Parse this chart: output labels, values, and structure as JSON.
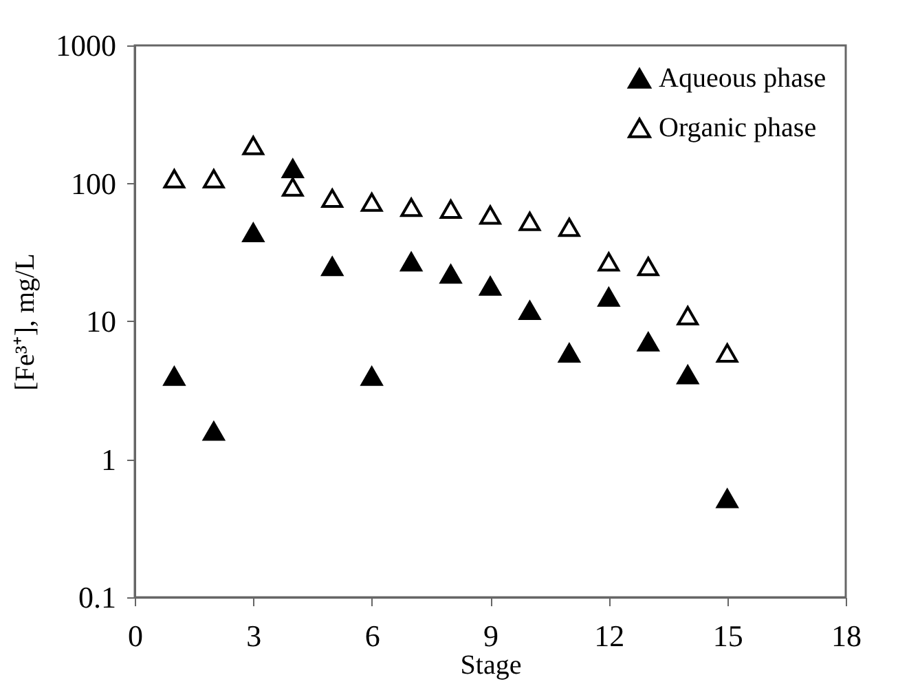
{
  "chart_data": {
    "type": "scatter",
    "xlabel": "Stage",
    "ylabel": "[Fe³⁺], mg/L",
    "log": "y",
    "marker": "triangle",
    "legend": "top right",
    "grid": false,
    "x": [
      1,
      2,
      3,
      4,
      5,
      6,
      7,
      8,
      9,
      10,
      11,
      12,
      13,
      14,
      15
    ],
    "xlim": [
      0,
      18
    ],
    "xticks": [
      0,
      3,
      6,
      9,
      12,
      15,
      18
    ],
    "ylim": [
      0.1,
      1000
    ],
    "yticks": [
      0.1,
      1,
      10,
      100,
      1000
    ],
    "series": [
      {
        "name": "Aqueous phase",
        "color": "#000000",
        "values": [
          4.0,
          1.6,
          44,
          128,
          25,
          4.0,
          27,
          22,
          18,
          12,
          5.9,
          15,
          7.1,
          4.1,
          0.52
        ]
      },
      {
        "name": "Organic phase",
        "color": "#ffffff",
        "values": [
          108,
          108,
          188,
          94,
          78,
          73,
          67,
          65,
          59,
          53,
          48,
          27,
          25,
          11,
          5.9
        ]
      }
    ]
  }
}
